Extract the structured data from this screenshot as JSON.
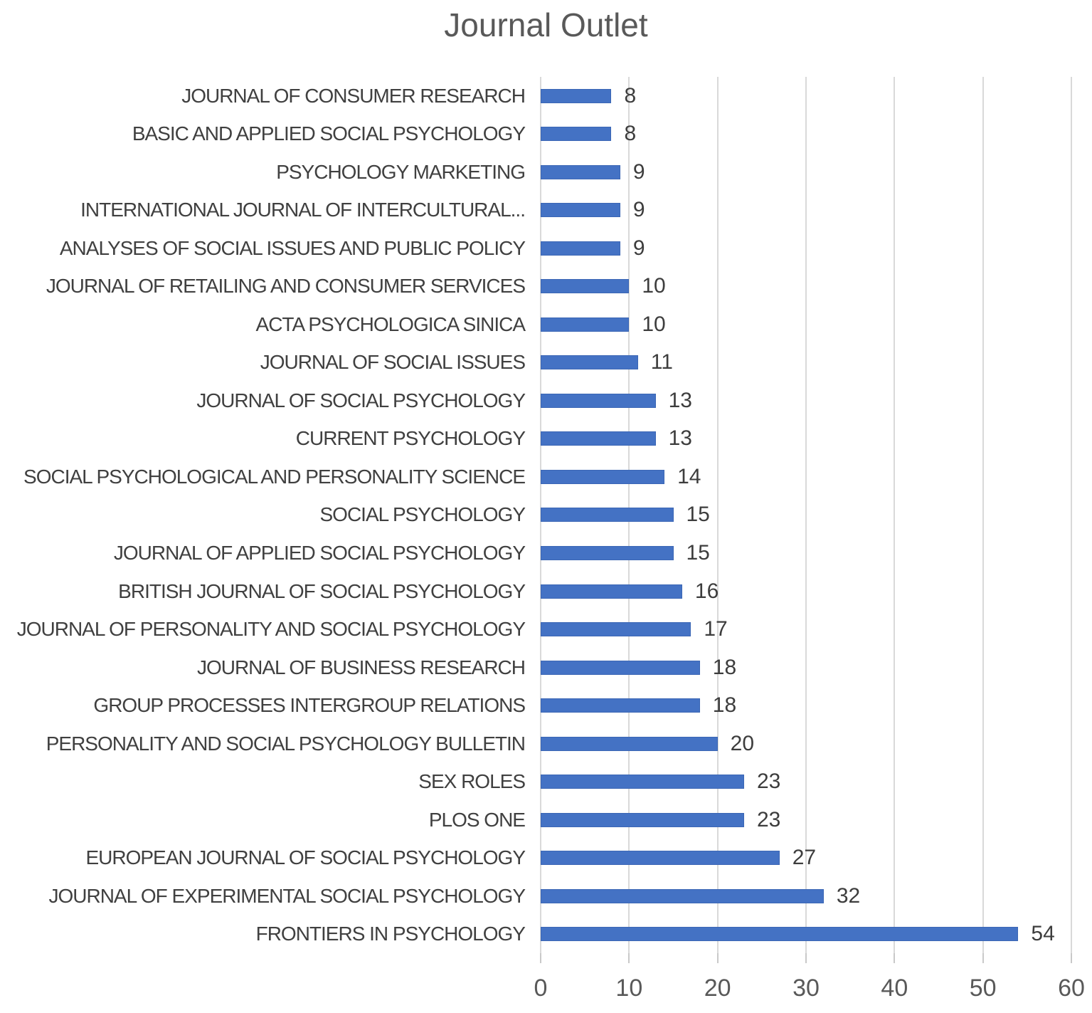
{
  "title": "Journal Outlet",
  "colors": {
    "bar": "#4472c4",
    "gridline": "#d9d9d9",
    "tick": "#c9c9c9",
    "title_text": "#595959",
    "label_text": "#404040"
  },
  "chart_data": {
    "type": "bar",
    "orientation": "horizontal",
    "title": "Journal Outlet",
    "categories": [
      "JOURNAL OF CONSUMER RESEARCH",
      "BASIC AND APPLIED SOCIAL PSYCHOLOGY",
      "PSYCHOLOGY MARKETING",
      "INTERNATIONAL JOURNAL OF INTERCULTURAL...",
      "ANALYSES OF SOCIAL ISSUES AND PUBLIC POLICY",
      "JOURNAL OF RETAILING AND CONSUMER SERVICES",
      "ACTA PSYCHOLOGICA SINICA",
      "JOURNAL OF SOCIAL ISSUES",
      "JOURNAL OF SOCIAL PSYCHOLOGY",
      "CURRENT PSYCHOLOGY",
      "SOCIAL PSYCHOLOGICAL AND PERSONALITY SCIENCE",
      "SOCIAL PSYCHOLOGY",
      "JOURNAL OF APPLIED SOCIAL PSYCHOLOGY",
      "BRITISH JOURNAL OF SOCIAL PSYCHOLOGY",
      "JOURNAL OF PERSONALITY AND SOCIAL PSYCHOLOGY",
      "JOURNAL OF BUSINESS RESEARCH",
      "GROUP PROCESSES INTERGROUP RELATIONS",
      "PERSONALITY AND SOCIAL PSYCHOLOGY BULLETIN",
      "SEX ROLES",
      "PLOS ONE",
      "EUROPEAN JOURNAL OF SOCIAL PSYCHOLOGY",
      "JOURNAL OF EXPERIMENTAL SOCIAL PSYCHOLOGY",
      "FRONTIERS IN PSYCHOLOGY"
    ],
    "values": [
      8,
      8,
      9,
      9,
      9,
      10,
      10,
      11,
      13,
      13,
      14,
      15,
      15,
      16,
      17,
      18,
      18,
      20,
      23,
      23,
      27,
      32,
      54
    ],
    "data_labels": [
      "8",
      "8",
      "9",
      "9",
      "9",
      "10",
      "10",
      "11",
      "13",
      "13",
      "14",
      "15",
      "15",
      "16",
      "17",
      "18",
      "18",
      "20",
      "23",
      "23",
      "27",
      "32",
      "54"
    ],
    "xlabel": "",
    "ylabel": "",
    "xlim": [
      0,
      60
    ],
    "xticks": [
      0,
      10,
      20,
      30,
      40,
      50,
      60
    ],
    "xtick_labels": [
      "0",
      "10",
      "20",
      "30",
      "40",
      "50",
      "60"
    ],
    "grid": true,
    "legend": false
  }
}
